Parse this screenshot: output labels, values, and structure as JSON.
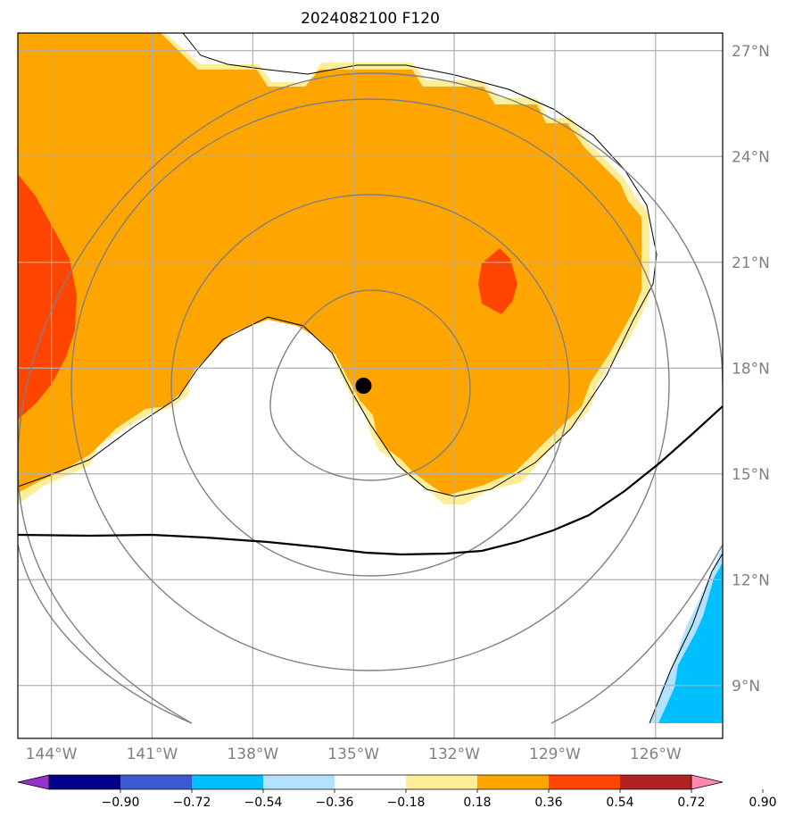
{
  "title": "2024082100 F120",
  "map": {
    "lon_range": [
      -145.0,
      -124.0
    ],
    "lat_range": [
      7.5,
      27.5
    ],
    "lon_ticks": [
      {
        "value": -144,
        "label": "144°W"
      },
      {
        "value": -141,
        "label": "141°W"
      },
      {
        "value": -138,
        "label": "138°W"
      },
      {
        "value": -135,
        "label": "135°W"
      },
      {
        "value": -132,
        "label": "132°W"
      },
      {
        "value": -129,
        "label": "129°W"
      },
      {
        "value": -126,
        "label": "126°W"
      }
    ],
    "lat_ticks": [
      {
        "value": 27,
        "label": "27°N"
      },
      {
        "value": 24,
        "label": "24°N"
      },
      {
        "value": 21,
        "label": "21°N"
      },
      {
        "value": 18,
        "label": "18°N"
      },
      {
        "value": 15,
        "label": "15°N"
      },
      {
        "value": 12,
        "label": "12°N"
      },
      {
        "value": 9,
        "label": "9°N"
      }
    ],
    "grid": true,
    "center_marker": {
      "lon": -134.7,
      "lat": 17.5
    },
    "range_rings_count": 4,
    "colors": {
      "orange_fill": "#ffa500",
      "red_fill": "#ff4500",
      "yellow_fill": "#ffee99",
      "cyan_fill": "#00bfff",
      "lightblue_fill": "#b3e2ff",
      "ring_color": "#808080",
      "grid_color": "#b0b0b0"
    }
  },
  "colorbar": {
    "boundaries": [
      "−0.90",
      "−0.72",
      "−0.54",
      "−0.36",
      "−0.18",
      "0.18",
      "0.36",
      "0.54",
      "0.72",
      "0.90"
    ],
    "colors": [
      "#9932cc",
      "#00008b",
      "#3c5ad2",
      "#00bfff",
      "#b3e2ff",
      "#ffffff",
      "#ffee99",
      "#ffa500",
      "#ff4500",
      "#b22222",
      "#ff88b0"
    ]
  }
}
